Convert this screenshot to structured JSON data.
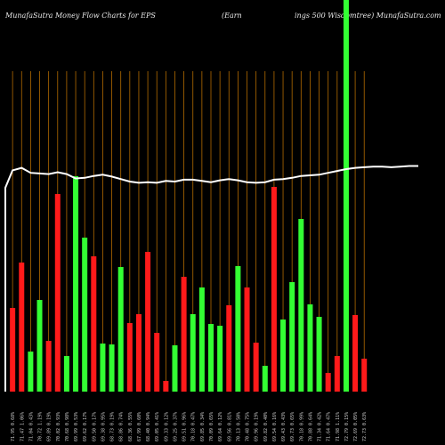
{
  "title": {
    "left": "MunafaSutra  Money Flow  Charts for EPS",
    "middle_a": "(Earn",
    "middle_b": "ings 500  Wisdomtree) MunafaSutra.com"
  },
  "colors": {
    "background": "#000000",
    "up": "#33ff33",
    "down": "#ff1a1a",
    "gridline": "#b36b00",
    "line": "#ffffff",
    "text": "#e8e8e8"
  },
  "chart_data": {
    "type": "bar",
    "xlim": [
      0,
      46
    ],
    "ylim": [
      0,
      360
    ],
    "bars": [
      {
        "x": 1,
        "h": 94,
        "dir": "down",
        "label": "71.95  0.68%"
      },
      {
        "x": 2,
        "h": 145,
        "dir": "down",
        "label": "71.47  1.06%"
      },
      {
        "x": 3,
        "h": 45,
        "dir": "up",
        "label": "71.04  0.43%"
      },
      {
        "x": 4,
        "h": 103,
        "dir": "up",
        "label": "70.72  1.19%"
      },
      {
        "x": 5,
        "h": 57,
        "dir": "down",
        "label": "69.89  0.19%"
      },
      {
        "x": 6,
        "h": 222,
        "dir": "down",
        "label": "70.02  0.93%"
      },
      {
        "x": 7,
        "h": 40,
        "dir": "up",
        "label": "70.68  0.98%"
      },
      {
        "x": 8,
        "h": 242,
        "dir": "up",
        "label": "69.99  0.53%"
      },
      {
        "x": 9,
        "h": 173,
        "dir": "up",
        "label": "69.62  0.17%"
      },
      {
        "x": 10,
        "h": 152,
        "dir": "down",
        "label": "69.50  0.17%"
      },
      {
        "x": 11,
        "h": 54,
        "dir": "up",
        "label": "69.38  0.95%"
      },
      {
        "x": 12,
        "h": 53,
        "dir": "up",
        "label": "68.73  0.19%"
      },
      {
        "x": 13,
        "h": 140,
        "dir": "up",
        "label": "68.86  0.74%"
      },
      {
        "x": 14,
        "h": 77,
        "dir": "down",
        "label": "68.36  0.55%"
      },
      {
        "x": 15,
        "h": 87,
        "dir": "down",
        "label": "67.99  0.60%"
      },
      {
        "x": 16,
        "h": 157,
        "dir": "down",
        "label": "68.40  0.94%"
      },
      {
        "x": 17,
        "h": 66,
        "dir": "down",
        "label": "69.05  0.41%"
      },
      {
        "x": 18,
        "h": 12,
        "dir": "down",
        "label": "69.33  0.12%"
      },
      {
        "x": 19,
        "h": 52,
        "dir": "up",
        "label": "69.25  0.37%"
      },
      {
        "x": 20,
        "h": 129,
        "dir": "down",
        "label": "69.51  0.96%"
      },
      {
        "x": 21,
        "h": 87,
        "dir": "up",
        "label": "70.18  0.47%"
      },
      {
        "x": 22,
        "h": 117,
        "dir": "up",
        "label": "69.85  0.34%"
      },
      {
        "x": 23,
        "h": 76,
        "dir": "up",
        "label": "70.09  0.65%"
      },
      {
        "x": 24,
        "h": 74,
        "dir": "up",
        "label": "69.64  0.12%"
      },
      {
        "x": 25,
        "h": 97,
        "dir": "down",
        "label": "69.56  0.81%"
      },
      {
        "x": 26,
        "h": 141,
        "dir": "up",
        "label": "70.13  0.50%"
      },
      {
        "x": 27,
        "h": 117,
        "dir": "down",
        "label": "70.48  0.75%"
      },
      {
        "x": 28,
        "h": 55,
        "dir": "down",
        "label": "69.96  0.19%"
      },
      {
        "x": 29,
        "h": 29,
        "dir": "up",
        "label": "69.82  0.40%"
      },
      {
        "x": 30,
        "h": 230,
        "dir": "down",
        "label": "69.54  0.16%"
      },
      {
        "x": 31,
        "h": 81,
        "dir": "up",
        "label": "69.43  0.43%"
      },
      {
        "x": 32,
        "h": 123,
        "dir": "up",
        "label": "69.73  0.65%"
      },
      {
        "x": 33,
        "h": 194,
        "dir": "up",
        "label": "70.18  0.99%"
      },
      {
        "x": 34,
        "h": 98,
        "dir": "up",
        "label": "70.88  0.64%"
      },
      {
        "x": 35,
        "h": 84,
        "dir": "up",
        "label": "71.34  0.42%"
      },
      {
        "x": 36,
        "h": 21,
        "dir": "down",
        "label": "71.64  0.47%"
      },
      {
        "x": 37,
        "h": 40,
        "dir": "down",
        "label": "71.98  1.11%"
      },
      {
        "x": 38,
        "h": 440,
        "dir": "up",
        "label": "72.79  0.15%"
      },
      {
        "x": 39,
        "h": 86,
        "dir": "down",
        "label": "72.69  0.05%"
      },
      {
        "x": 40,
        "h": 37,
        "dir": "down",
        "label": "72.73  0.63%"
      }
    ],
    "line": [
      [
        0.2,
        60
      ],
      [
        1,
        32
      ],
      [
        2,
        28
      ],
      [
        3,
        36
      ],
      [
        4,
        37
      ],
      [
        5,
        38
      ],
      [
        6,
        35
      ],
      [
        7,
        38
      ],
      [
        8,
        45
      ],
      [
        9,
        44
      ],
      [
        10,
        41
      ],
      [
        11,
        39
      ],
      [
        12,
        42
      ],
      [
        13,
        46
      ],
      [
        14,
        50
      ],
      [
        15,
        52
      ],
      [
        16,
        51
      ],
      [
        17,
        52
      ],
      [
        18,
        49
      ],
      [
        19,
        50
      ],
      [
        20,
        47
      ],
      [
        21,
        47
      ],
      [
        22,
        49
      ],
      [
        23,
        51
      ],
      [
        24,
        48
      ],
      [
        25,
        46
      ],
      [
        26,
        48
      ],
      [
        27,
        51
      ],
      [
        28,
        52
      ],
      [
        29,
        51
      ],
      [
        30,
        47
      ],
      [
        31,
        46
      ],
      [
        32,
        44
      ],
      [
        33,
        41
      ],
      [
        34,
        40
      ],
      [
        35,
        39
      ],
      [
        36,
        36
      ],
      [
        37,
        33
      ],
      [
        38,
        30
      ],
      [
        39,
        28
      ],
      [
        40,
        27
      ],
      [
        41,
        26
      ],
      [
        42,
        26
      ],
      [
        43,
        27
      ],
      [
        44,
        26
      ],
      [
        45,
        25
      ],
      [
        46,
        25
      ]
    ]
  }
}
